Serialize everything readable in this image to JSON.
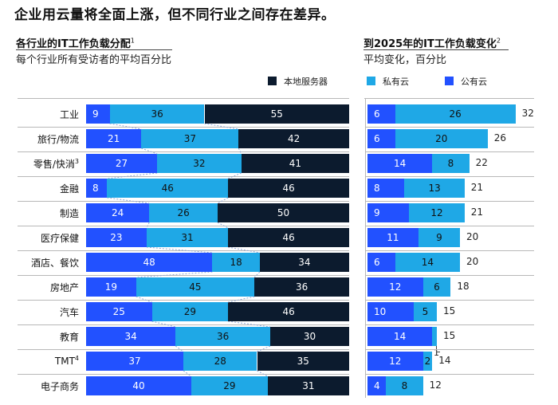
{
  "chart_data": [
    {
      "type": "bar",
      "stacked": true,
      "orientation": "horizontal",
      "title": "企业用云量将全面上涨，但不同行业之间存在差异。",
      "panel_title": "各行业的IT工作负载分配",
      "panel_title_note": "1",
      "panel_subtitle": "每个行业所有受访者的平均百分比",
      "categories": [
        "工业",
        "旅行/物流",
        "零售/快消",
        "金融",
        "制造",
        "医疗保健",
        "酒店、餐饮",
        "房地产",
        "汽车",
        "教育",
        "TMT",
        "电子商务"
      ],
      "category_notes": [
        "",
        "",
        "3",
        "",
        "",
        "",
        "",
        "",
        "",
        "",
        "4",
        ""
      ],
      "series": [
        {
          "name": "公有云",
          "color": "#2251ff",
          "values": [
            9,
            21,
            27,
            8,
            24,
            23,
            48,
            19,
            25,
            34,
            37,
            40
          ]
        },
        {
          "name": "私有云",
          "color": "#1fa8e6",
          "values": [
            36,
            37,
            32,
            46,
            26,
            31,
            18,
            45,
            29,
            36,
            28,
            29
          ]
        },
        {
          "name": "本地服务器",
          "color": "#0c1b2e",
          "values": [
            55,
            42,
            41,
            46,
            50,
            46,
            34,
            36,
            46,
            30,
            35,
            31
          ]
        }
      ],
      "xlim": [
        0,
        100
      ],
      "legend": "top-right"
    },
    {
      "type": "bar",
      "stacked": true,
      "orientation": "horizontal",
      "title": "到2025年的IT工作负载变化",
      "title_note": "2",
      "subtitle": "平均变化，百分比",
      "categories": [
        "工业",
        "旅行/物流",
        "零售/快消",
        "金融",
        "制造",
        "医疗保健",
        "酒店、餐饮",
        "房地产",
        "汽车",
        "教育",
        "TMT",
        "电子商务"
      ],
      "series": [
        {
          "name": "公有云",
          "color": "#2251ff",
          "values": [
            6,
            6,
            14,
            8,
            9,
            11,
            6,
            12,
            10,
            14,
            12,
            4
          ]
        },
        {
          "name": "私有云",
          "color": "#1fa8e6",
          "values": [
            26,
            20,
            8,
            13,
            12,
            9,
            14,
            6,
            5,
            1,
            2,
            8
          ]
        }
      ],
      "totals": [
        32,
        26,
        22,
        21,
        21,
        20,
        20,
        18,
        15,
        15,
        14,
        12
      ],
      "xlim": [
        0,
        34
      ]
    }
  ]
}
